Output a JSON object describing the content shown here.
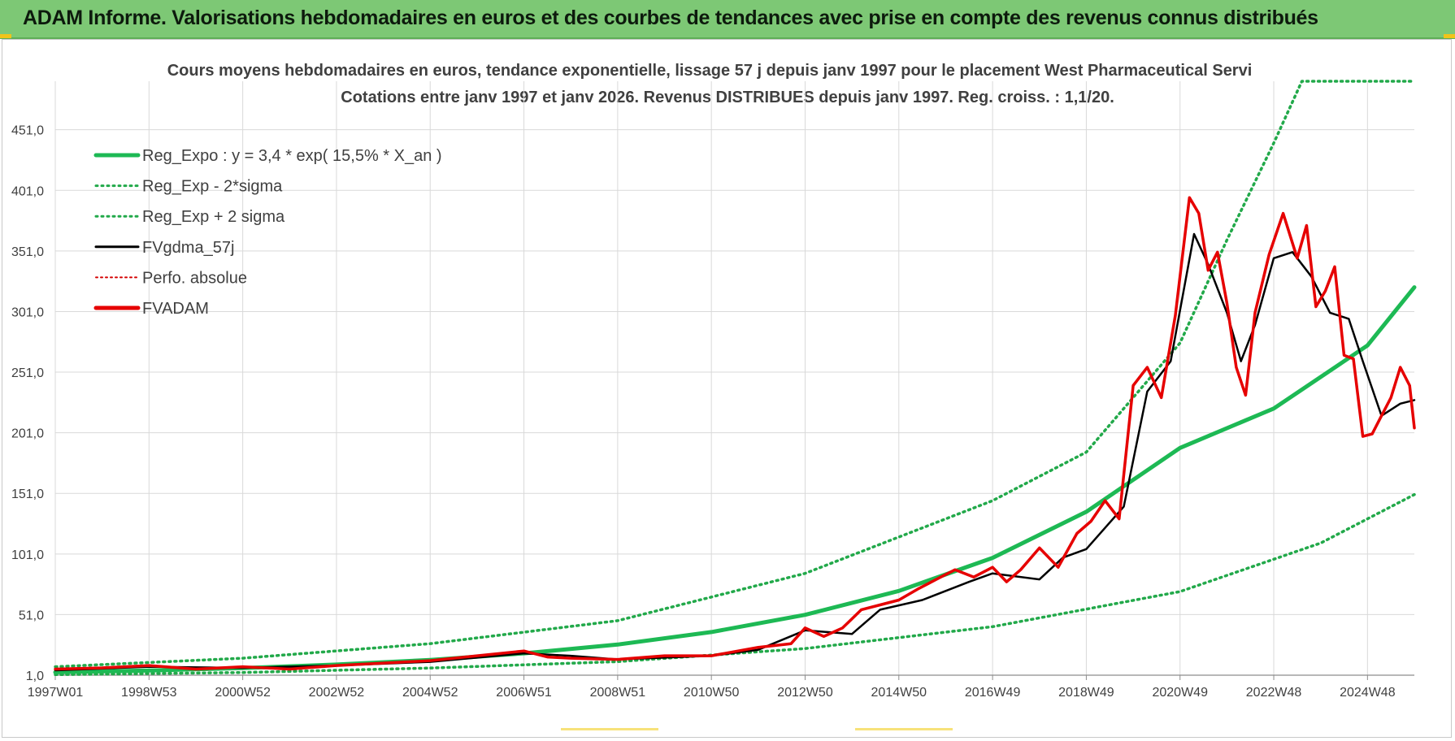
{
  "banner": {
    "title": "ADAM Informe. Valorisations hebdomadaires en euros et des courbes de tendances avec prise en compte des revenus connus distribués"
  },
  "colors": {
    "banner": "#7dc875",
    "reg_expo": "#1db954",
    "sigma": "#22a94a",
    "gdma": "#000000",
    "perfo": "#d40000",
    "fvadam": "#e60000",
    "grid": "#d9d9d9",
    "text": "#404040"
  },
  "chart_data": {
    "type": "line",
    "title_line1": "Cours moyens hebdomadaires en euros, tendance exponentielle, lissage 57 j depuis janv 1997  pour le placement West Pharmaceutical Servi",
    "title_line2": "Cotations entre janv 1997 et janv 2026. Revenus DISTRIBUES depuis janv 1997. Reg. croiss. : 1,1/20.",
    "xlabel": "",
    "ylabel": "",
    "x_range": [
      1997.0,
      2026.0
    ],
    "ylim": [
      1,
      491
    ],
    "y_ticks": [
      "1,0",
      "51,0",
      "101,0",
      "151,0",
      "201,0",
      "251,0",
      "301,0",
      "351,0",
      "401,0",
      "451,0"
    ],
    "y_tick_values": [
      1,
      51,
      101,
      151,
      201,
      251,
      301,
      351,
      401,
      451
    ],
    "x_ticks": [
      "1997W01",
      "1998W53",
      "2000W52",
      "2002W52",
      "2004W52",
      "2006W51",
      "2008W51",
      "2010W50",
      "2012W50",
      "2014W50",
      "2016W49",
      "2018W49",
      "2020W49",
      "2022W48",
      "2024W48"
    ],
    "x_tick_values": [
      1997.0,
      1999.0,
      2001.0,
      2003.0,
      2005.0,
      2007.0,
      2009.0,
      2011.0,
      2013.0,
      2015.0,
      2017.0,
      2019.0,
      2021.0,
      2023.0,
      2025.0
    ],
    "legend_position": "top-left",
    "legend": [
      {
        "label": "Reg_Expo : y = 3,4 * exp( 15,5% *  X_an )",
        "style": "solid-thick",
        "color": "#1db954"
      },
      {
        "label": "Reg_Exp - 2*sigma",
        "style": "dotted",
        "color": "#22a94a"
      },
      {
        "label": "Reg_Exp + 2 sigma",
        "style": "dotted",
        "color": "#22a94a"
      },
      {
        "label": "FVgdma_57j",
        "style": "solid",
        "color": "#000000"
      },
      {
        "label": "Perfo. absolue",
        "style": "dotted-thin",
        "color": "#d40000"
      },
      {
        "label": "FVADAM",
        "style": "solid-thick",
        "color": "#e60000"
      }
    ],
    "series": [
      {
        "name": "Reg_Expo : y = 3,4 * exp( 15,5% *  X_an )",
        "x": [
          1997.0,
          1999.0,
          2001.0,
          2003.0,
          2005.0,
          2007.0,
          2009.0,
          2011.0,
          2013.0,
          2015.0,
          2017.0,
          2019.0,
          2021.0,
          2023.0,
          2025.0,
          2026.0
        ],
        "values": [
          3.4,
          4.9,
          6.9,
          9.8,
          13.6,
          19.0,
          26.3,
          36.6,
          50.8,
          70.5,
          97.8,
          135.8,
          188.5,
          221.0,
          273.0,
          321.0
        ]
      },
      {
        "name": "Reg_Exp - 2*sigma",
        "x": [
          1997.0,
          2001.0,
          2005.0,
          2009.0,
          2013.0,
          2017.0,
          2021.0,
          2024.0,
          2026.0
        ],
        "values": [
          1.5,
          3.2,
          6.9,
          12.2,
          23.0,
          41.0,
          70.0,
          110.0,
          150.0
        ]
      },
      {
        "name": "Reg_Exp + 2 sigma",
        "x": [
          1997.0,
          2001.0,
          2005.0,
          2009.0,
          2013.0,
          2017.0,
          2019.0,
          2021.0,
          2022.0,
          2023.0,
          2023.6,
          2024.0,
          2026.0
        ],
        "values": [
          8.0,
          15.0,
          27.0,
          46.0,
          85.0,
          145.0,
          185.0,
          275.0,
          360.0,
          440.0,
          491.0,
          491.0,
          491.0
        ]
      },
      {
        "name": "FVgdma_57j",
        "x": [
          1997.0,
          1999.0,
          2001.0,
          2003.0,
          2005.0,
          2007.0,
          2008.0,
          2009.0,
          2011.0,
          2012.0,
          2013.0,
          2014.0,
          2014.6,
          2015.5,
          2016.5,
          2017.0,
          2018.0,
          2018.5,
          2019.0,
          2019.8,
          2020.3,
          2020.8,
          2021.3,
          2021.6,
          2022.0,
          2022.3,
          2022.6,
          2023.0,
          2023.4,
          2023.8,
          2024.2,
          2024.6,
          2024.9,
          2025.3,
          2025.7,
          2026.0
        ],
        "values": [
          5.0,
          8.0,
          7.0,
          9.0,
          12.0,
          19.0,
          17.0,
          14.0,
          17.0,
          22.0,
          38.0,
          35.0,
          55.0,
          63.0,
          78.0,
          85.0,
          80.0,
          98.0,
          105.0,
          140.0,
          235.0,
          260.0,
          365.0,
          340.0,
          300.0,
          260.0,
          290.0,
          345.0,
          350.0,
          330.0,
          300.0,
          295.0,
          260.0,
          215.0,
          225.0,
          228.0
        ]
      },
      {
        "name": "FVADAM",
        "x": [
          1997.0,
          1998.0,
          1999.0,
          2000.0,
          2001.0,
          2002.0,
          2003.0,
          2004.0,
          2005.0,
          2006.0,
          2007.0,
          2007.5,
          2008.0,
          2009.0,
          2010.0,
          2011.0,
          2012.0,
          2012.7,
          2013.0,
          2013.4,
          2013.8,
          2014.2,
          2014.6,
          2015.0,
          2015.4,
          2015.8,
          2016.2,
          2016.6,
          2017.0,
          2017.3,
          2017.6,
          2018.0,
          2018.4,
          2018.8,
          2019.1,
          2019.4,
          2019.7,
          2020.0,
          2020.3,
          2020.6,
          2020.9,
          2021.2,
          2021.4,
          2021.6,
          2021.8,
          2022.0,
          2022.2,
          2022.4,
          2022.6,
          2022.9,
          2023.2,
          2023.5,
          2023.7,
          2023.9,
          2024.1,
          2024.3,
          2024.5,
          2024.7,
          2024.9,
          2025.1,
          2025.3,
          2025.5,
          2025.7,
          2025.9,
          2026.0
        ],
        "values": [
          6.0,
          7.0,
          9.0,
          6.0,
          8.0,
          6.0,
          9.0,
          11.0,
          13.0,
          17.0,
          21.0,
          16.0,
          15.0,
          14.0,
          17.0,
          17.0,
          24.0,
          27.0,
          40.0,
          33.0,
          40.0,
          55.0,
          59.0,
          63.0,
          72.0,
          80.0,
          88.0,
          82.0,
          90.0,
          78.0,
          88.0,
          106.0,
          90.0,
          118.0,
          128.0,
          145.0,
          130.0,
          240.0,
          255.0,
          230.0,
          298.0,
          395.0,
          382.0,
          335.0,
          350.0,
          308.0,
          255.0,
          232.0,
          300.0,
          348.0,
          382.0,
          345.0,
          372.0,
          305.0,
          318.0,
          338.0,
          265.0,
          262.0,
          198.0,
          200.0,
          215.0,
          230.0,
          255.0,
          240.0,
          205.0
        ]
      }
    ]
  }
}
